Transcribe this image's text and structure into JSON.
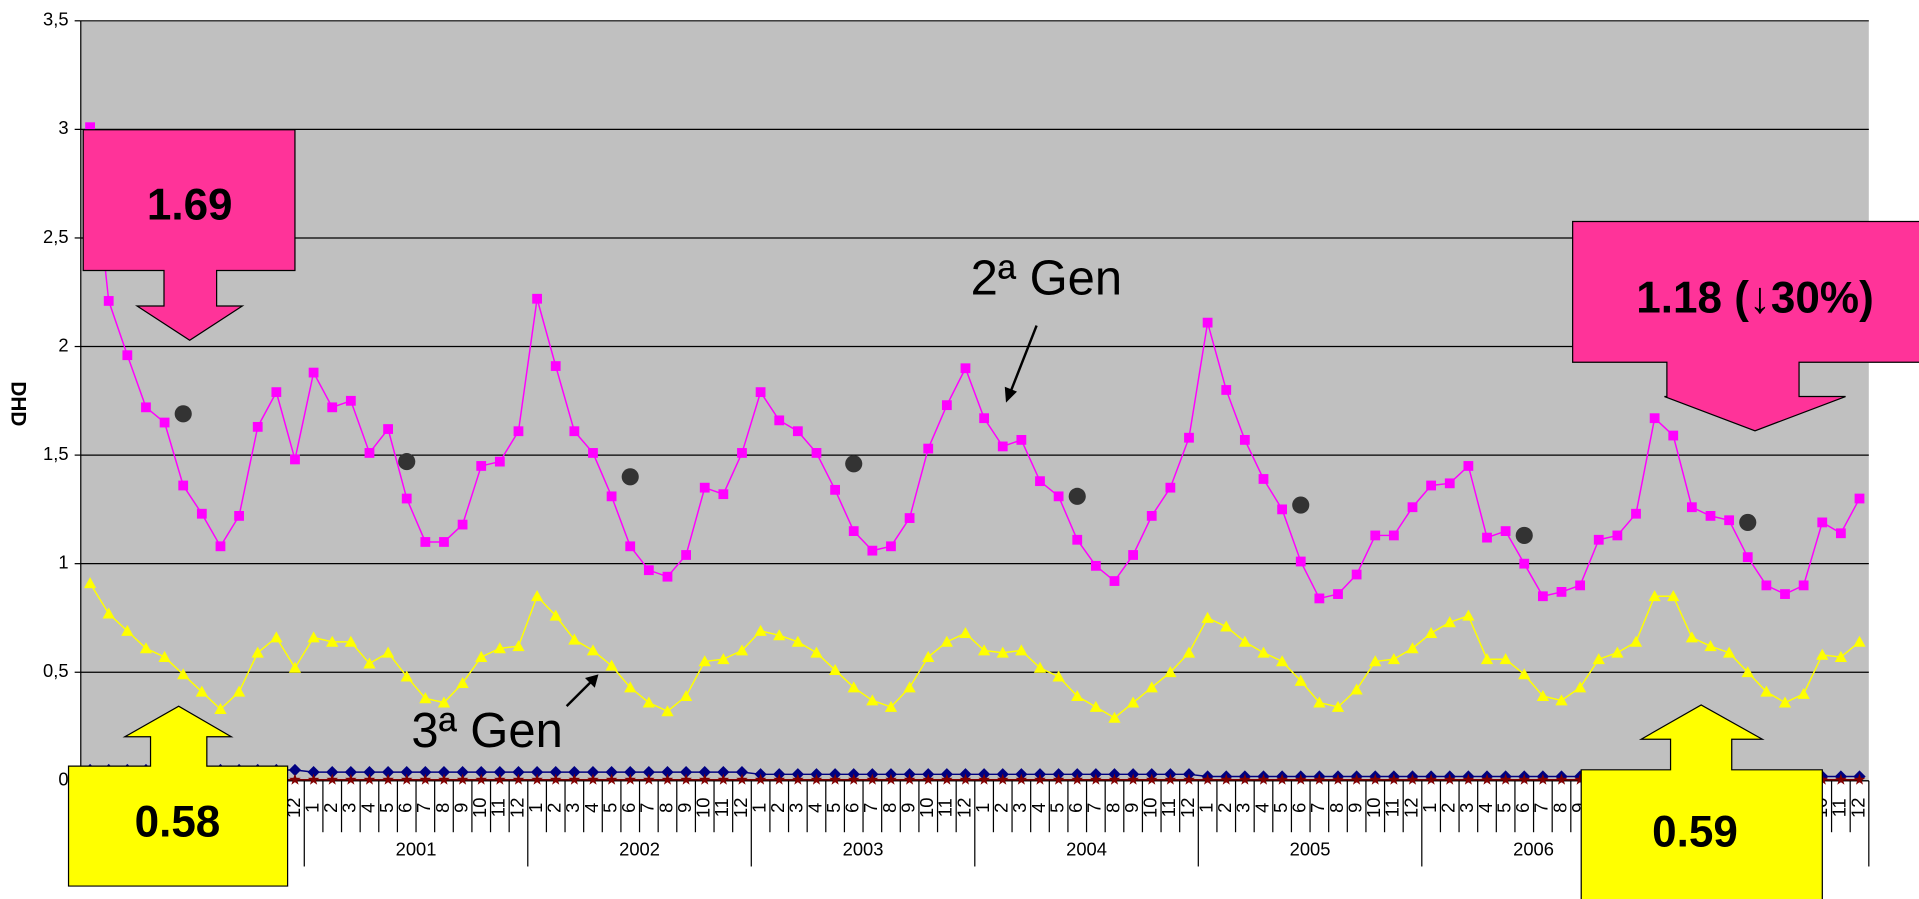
{
  "chart_data": {
    "type": "line",
    "y_label": "DHD",
    "ylim": [
      0,
      3.5
    ],
    "yticks": [
      0,
      {
        "value": 0.5,
        "label": "0,5"
      },
      1,
      {
        "value": 1.5,
        "label": "1,5"
      },
      2,
      {
        "value": 2.5,
        "label": "2,5"
      },
      3,
      {
        "value": 3.5,
        "label": "3,5"
      }
    ],
    "grid": true,
    "categories": [
      "1",
      "2",
      "3",
      "4",
      "5",
      "6",
      "7",
      "8",
      "9",
      "10",
      "11",
      "12",
      "1",
      "2",
      "3",
      "4",
      "5",
      "6",
      "7",
      "8",
      "9",
      "10",
      "11",
      "12",
      "1",
      "2",
      "3",
      "4",
      "5",
      "6",
      "7",
      "8",
      "9",
      "10",
      "11",
      "12",
      "1",
      "2",
      "3",
      "4",
      "5",
      "6",
      "7",
      "8",
      "9",
      "10",
      "11",
      "12",
      "1",
      "2",
      "3",
      "4",
      "5",
      "6",
      "7",
      "8",
      "9",
      "10",
      "11",
      "12",
      "1",
      "2",
      "3",
      "4",
      "5",
      "6",
      "7",
      "8",
      "9",
      "10",
      "11",
      "12",
      "1",
      "2",
      "3",
      "4",
      "5",
      "6",
      "7",
      "8",
      "9",
      "10",
      "11",
      "12",
      "1",
      "2",
      "3",
      "4",
      "5",
      "6",
      "7",
      "8",
      "9",
      "10",
      "11",
      "12"
    ],
    "year_labels": [
      null,
      "2001",
      "2002",
      "2003",
      "2004",
      "2005",
      "2006",
      null
    ],
    "series": [
      {
        "color": "#ff00ff",
        "marker": "square",
        "values": [
          3.01,
          2.21,
          1.96,
          1.72,
          1.65,
          1.36,
          1.23,
          1.08,
          1.22,
          1.63,
          1.79,
          1.48,
          1.88,
          1.72,
          1.75,
          1.51,
          1.62,
          1.3,
          1.1,
          1.1,
          1.18,
          1.45,
          1.47,
          1.61,
          2.22,
          1.91,
          1.61,
          1.51,
          1.31,
          1.08,
          0.97,
          0.94,
          1.04,
          1.35,
          1.32,
          1.51,
          1.79,
          1.66,
          1.61,
          1.51,
          1.34,
          1.15,
          1.06,
          1.08,
          1.21,
          1.53,
          1.73,
          1.9,
          1.67,
          1.54,
          1.57,
          1.38,
          1.31,
          1.11,
          0.99,
          0.92,
          1.04,
          1.22,
          1.35,
          1.58,
          2.11,
          1.8,
          1.57,
          1.39,
          1.25,
          1.01,
          0.84,
          0.86,
          0.95,
          1.13,
          1.13,
          1.26,
          1.36,
          1.37,
          1.45,
          1.12,
          1.15,
          1.0,
          0.85,
          0.87,
          0.9,
          1.11,
          1.13,
          1.23,
          1.67,
          1.59,
          1.26,
          1.22,
          1.2,
          1.03,
          0.9,
          0.86,
          0.9,
          1.19,
          1.14,
          1.3
        ]
      },
      {
        "color": "#ffff00",
        "marker": "triangle",
        "values": [
          0.91,
          0.77,
          0.69,
          0.61,
          0.57,
          0.49,
          0.41,
          0.33,
          0.41,
          0.59,
          0.66,
          0.52,
          0.66,
          0.64,
          0.64,
          0.54,
          0.59,
          0.48,
          0.38,
          0.36,
          0.45,
          0.57,
          0.61,
          0.62,
          0.85,
          0.76,
          0.65,
          0.6,
          0.53,
          0.43,
          0.36,
          0.32,
          0.39,
          0.55,
          0.56,
          0.6,
          0.69,
          0.67,
          0.64,
          0.59,
          0.51,
          0.43,
          0.37,
          0.34,
          0.43,
          0.57,
          0.64,
          0.68,
          0.6,
          0.59,
          0.6,
          0.52,
          0.48,
          0.39,
          0.34,
          0.29,
          0.36,
          0.43,
          0.5,
          0.59,
          0.75,
          0.71,
          0.64,
          0.59,
          0.55,
          0.46,
          0.36,
          0.34,
          0.42,
          0.55,
          0.56,
          0.61,
          0.68,
          0.73,
          0.76,
          0.56,
          0.56,
          0.49,
          0.39,
          0.37,
          0.43,
          0.56,
          0.59,
          0.64,
          0.85,
          0.85,
          0.66,
          0.62,
          0.59,
          0.5,
          0.41,
          0.36,
          0.4,
          0.58,
          0.57,
          0.64
        ]
      },
      {
        "color": "#000080",
        "marker": "diamond",
        "values": [
          0.05,
          0.05,
          0.05,
          0.05,
          0.05,
          0.05,
          0.05,
          0.05,
          0.05,
          0.05,
          0.05,
          0.05,
          0.04,
          0.04,
          0.04,
          0.04,
          0.04,
          0.04,
          0.04,
          0.04,
          0.04,
          0.04,
          0.04,
          0.04,
          0.04,
          0.04,
          0.04,
          0.04,
          0.04,
          0.04,
          0.04,
          0.04,
          0.04,
          0.04,
          0.04,
          0.04,
          0.03,
          0.03,
          0.03,
          0.03,
          0.03,
          0.03,
          0.03,
          0.03,
          0.03,
          0.03,
          0.03,
          0.03,
          0.03,
          0.03,
          0.03,
          0.03,
          0.03,
          0.03,
          0.03,
          0.03,
          0.03,
          0.03,
          0.03,
          0.03,
          0.02,
          0.02,
          0.02,
          0.02,
          0.02,
          0.02,
          0.02,
          0.02,
          0.02,
          0.02,
          0.02,
          0.02,
          0.02,
          0.02,
          0.02,
          0.02,
          0.02,
          0.02,
          0.02,
          0.02,
          0.02,
          0.02,
          0.02,
          0.02,
          0.02,
          0.02,
          0.02,
          0.02,
          0.02,
          0.02,
          0.02,
          0.02,
          0.02,
          0.02,
          0.02,
          0.02
        ]
      },
      {
        "color": "#800000",
        "marker": "star",
        "values": [
          0.005,
          0.005,
          0.005,
          0.005,
          0.005,
          0.005,
          0.005,
          0.005,
          0.005,
          0.005,
          0.005,
          0.005,
          0.005,
          0.005,
          0.005,
          0.005,
          0.005,
          0.005,
          0.005,
          0.005,
          0.005,
          0.005,
          0.005,
          0.005,
          0.005,
          0.005,
          0.005,
          0.005,
          0.005,
          0.005,
          0.005,
          0.005,
          0.005,
          0.005,
          0.005,
          0.005,
          0.005,
          0.005,
          0.005,
          0.005,
          0.005,
          0.005,
          0.005,
          0.005,
          0.005,
          0.005,
          0.005,
          0.005,
          0.005,
          0.005,
          0.005,
          0.005,
          0.005,
          0.005,
          0.005,
          0.005,
          0.005,
          0.005,
          0.005,
          0.005,
          0.005,
          0.005,
          0.005,
          0.005,
          0.005,
          0.005,
          0.005,
          0.005,
          0.005,
          0.005,
          0.005,
          0.005,
          0.005,
          0.005,
          0.005,
          0.005,
          0.005,
          0.005,
          0.005,
          0.005,
          0.005,
          0.005,
          0.005,
          0.005,
          0.005,
          0.005,
          0.005,
          0.005,
          0.005,
          0.005,
          0.005,
          0.005,
          0.005,
          0.005,
          0.005,
          0.005
        ]
      },
      {
        "color": "#333333",
        "marker": "dot",
        "line": false,
        "values": [
          null,
          null,
          null,
          null,
          null,
          1.69,
          null,
          null,
          null,
          null,
          null,
          null,
          null,
          null,
          null,
          null,
          null,
          1.47,
          null,
          null,
          null,
          null,
          null,
          null,
          null,
          null,
          null,
          null,
          null,
          1.4,
          null,
          null,
          null,
          null,
          null,
          null,
          null,
          null,
          null,
          null,
          null,
          1.46,
          null,
          null,
          null,
          null,
          null,
          null,
          null,
          null,
          null,
          null,
          null,
          1.31,
          null,
          null,
          null,
          null,
          null,
          null,
          null,
          null,
          null,
          null,
          null,
          1.27,
          null,
          null,
          null,
          null,
          null,
          null,
          null,
          null,
          null,
          null,
          null,
          1.13,
          null,
          null,
          null,
          null,
          null,
          null,
          null,
          null,
          null,
          null,
          null,
          1.19,
          null,
          null,
          null,
          null,
          null,
          null
        ]
      }
    ],
    "annotations": [
      "2ª Gen",
      "3ª Gen"
    ],
    "callouts": [
      "1.69",
      "1.18 (↓30%)",
      "0.58",
      "0.59"
    ]
  }
}
